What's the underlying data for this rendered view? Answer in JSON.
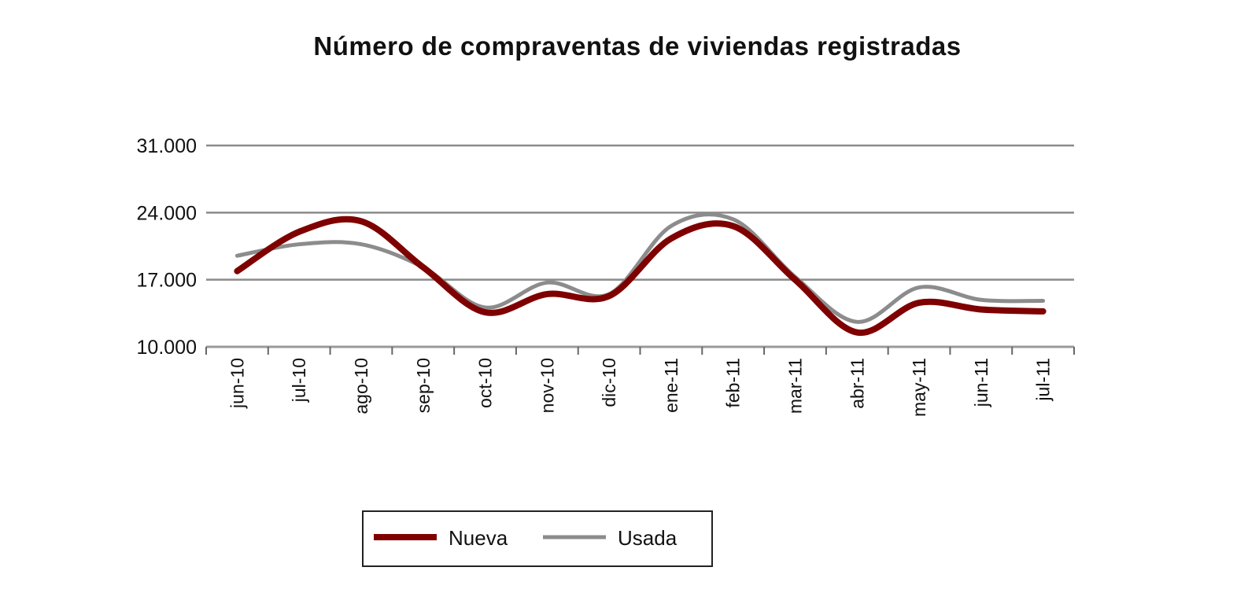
{
  "chart_data": {
    "type": "line",
    "title": "Número de compraventas de viviendas registradas",
    "xlabel": "",
    "ylabel": "",
    "categories": [
      "jun-10",
      "jul-10",
      "ago-10",
      "sep-10",
      "oct-10",
      "nov-10",
      "dic-10",
      "ene-11",
      "feb-11",
      "mar-11",
      "abr-11",
      "may-11",
      "jun-11",
      "jul-11"
    ],
    "y_ticks": [
      "10.000",
      "17.000",
      "24.000",
      "31.000"
    ],
    "y_tick_values": [
      10000,
      17000,
      24000,
      31000
    ],
    "ylim": [
      10000,
      31000
    ],
    "grid": "horizontal",
    "smoothed": true,
    "legend_position": "bottom",
    "series": [
      {
        "name": "Nueva",
        "color": "#7f0000",
        "values": [
          17900,
          22000,
          23100,
          18300,
          13600,
          15500,
          15300,
          21300,
          22600,
          17000,
          11500,
          14600,
          13900,
          13700
        ]
      },
      {
        "name": "Usada",
        "color": "#8c8c8c",
        "values": [
          19500,
          20700,
          20700,
          18300,
          14100,
          16700,
          15500,
          22600,
          23300,
          17300,
          12600,
          16200,
          14900,
          14800
        ]
      }
    ]
  }
}
